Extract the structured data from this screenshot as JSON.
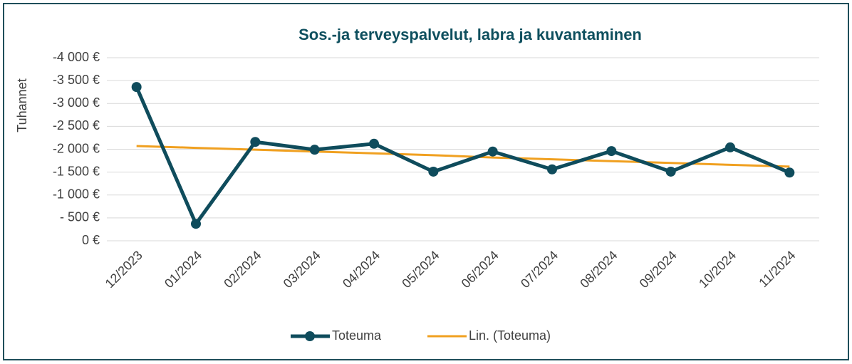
{
  "chart_data": {
    "type": "line",
    "title": "Sos.-ja terveyspalvelut, labra ja kuvantaminen",
    "y_label": "Tuhannet",
    "categories": [
      "12/2023",
      "01/2024",
      "02/2024",
      "03/2024",
      "04/2024",
      "05/2024",
      "06/2024",
      "07/2024",
      "08/2024",
      "09/2024",
      "10/2024",
      "11/2024"
    ],
    "series": [
      {
        "name": "Toteuma",
        "color": "#0f4c5c",
        "values": [
          -3360,
          -370,
          -2160,
          -1990,
          -2120,
          -1510,
          -1950,
          -1560,
          -1960,
          -1510,
          -2040,
          -1490
        ]
      },
      {
        "name": "Lin. (Toteuma)",
        "color": "#f0a020",
        "values": [
          -2070,
          -2030,
          -1990,
          -1950,
          -1910,
          -1870,
          -1820,
          -1780,
          -1740,
          -1700,
          -1660,
          -1620
        ]
      }
    ],
    "ylim": [
      0,
      -4000
    ],
    "yticks": [
      {
        "value": -4000,
        "label": "-4 000 €"
      },
      {
        "value": -3500,
        "label": "-3 500 €"
      },
      {
        "value": -3000,
        "label": "-3 000 €"
      },
      {
        "value": -2500,
        "label": "-2 500 €"
      },
      {
        "value": -2000,
        "label": "-2 000 €"
      },
      {
        "value": -1500,
        "label": "-1 500 €"
      },
      {
        "value": -1000,
        "label": "-1 000 €"
      },
      {
        "value": -500,
        "label": "- 500 €"
      },
      {
        "value": 0,
        "label": "0 €"
      }
    ],
    "grid": true,
    "legend": "bottom"
  }
}
